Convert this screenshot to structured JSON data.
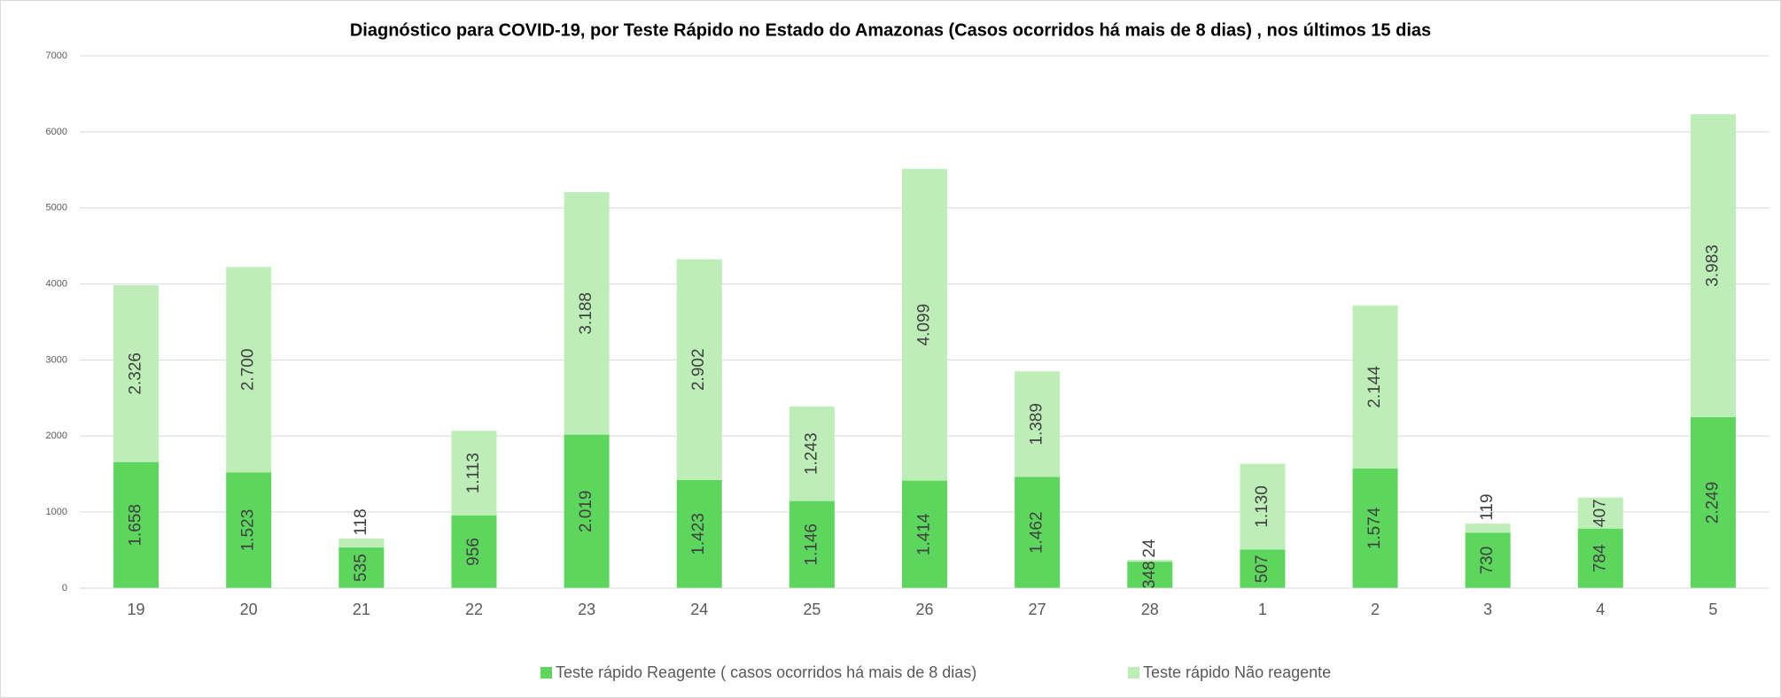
{
  "chart_data": {
    "type": "stacked_bar",
    "title": "Diagnóstico para COVID-19, por  Teste Rápido no Estado do Amazonas (Casos ocorridos há mais de 8 dias) , nos últimos 15 dias",
    "categories": [
      "19",
      "20",
      "21",
      "22",
      "23",
      "24",
      "25",
      "26",
      "27",
      "28",
      "1",
      "2",
      "3",
      "4",
      "5"
    ],
    "series": [
      {
        "name": "Teste rápido Reagente ( casos ocorridos há mais de 8 dias)",
        "color": "#5cd65c",
        "values": [
          1658,
          1523,
          535,
          956,
          2019,
          1423,
          1146,
          1414,
          1462,
          348,
          507,
          1574,
          730,
          784,
          2249
        ],
        "value_labels": [
          "1.658",
          "1.523",
          "535",
          "956",
          "2.019",
          "1.423",
          "1.146",
          "1.414",
          "1.462",
          "348",
          "507",
          "1.574",
          "730",
          "784",
          "2.249"
        ]
      },
      {
        "name": "Teste rápido Não reagente",
        "color": "#bdeeb8",
        "values": [
          2326,
          2700,
          118,
          1113,
          3188,
          2902,
          1243,
          4099,
          1389,
          24,
          1130,
          2144,
          119,
          407,
          3983
        ],
        "value_labels": [
          "2.326",
          "2.700",
          "118",
          "1.113",
          "3.188",
          "2.902",
          "1.243",
          "4.099",
          "1.389",
          "24",
          "1.130",
          "2.144",
          "119",
          "407",
          "3.983"
        ]
      }
    ],
    "ylim": [
      0,
      7000
    ],
    "yticks": [
      0,
      1000,
      2000,
      3000,
      4000,
      5000,
      6000,
      7000
    ],
    "grid": true,
    "legend": "bottom"
  }
}
